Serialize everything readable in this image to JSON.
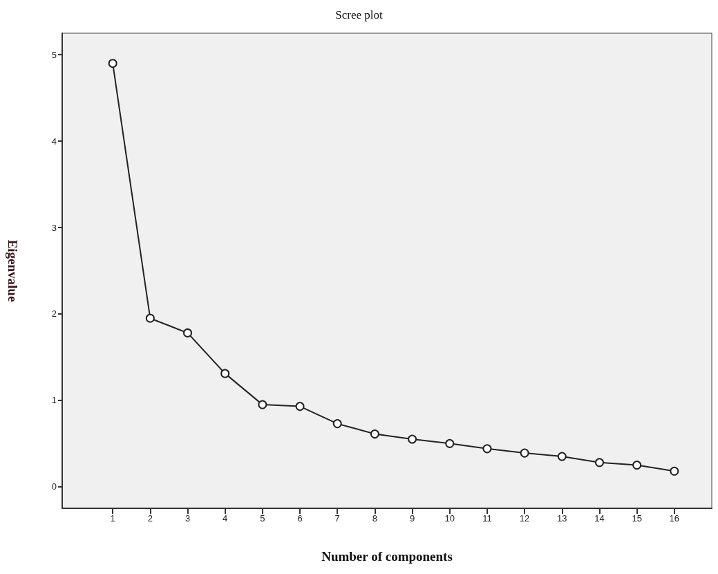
{
  "chart_data": {
    "type": "line",
    "title": "Scree plot",
    "xlabel": "Number of components",
    "ylabel": "Eigenvalue",
    "x": [
      1,
      2,
      3,
      4,
      5,
      6,
      7,
      8,
      9,
      10,
      11,
      12,
      13,
      14,
      15,
      16
    ],
    "values": [
      4.9,
      1.95,
      1.78,
      1.31,
      0.95,
      0.93,
      0.73,
      0.61,
      0.55,
      0.5,
      0.44,
      0.39,
      0.35,
      0.28,
      0.25,
      0.18
    ],
    "color": "#222222",
    "marker": "circle",
    "line_style": "solid",
    "grid": false,
    "xlim": [
      -0.35,
      17
    ],
    "xticks": [
      1,
      2,
      3,
      4,
      5,
      6,
      7,
      8,
      9,
      10,
      11,
      12,
      13,
      14,
      15,
      16
    ],
    "ylim": [
      -0.25,
      5.25
    ],
    "yticks": [
      0,
      1,
      2,
      3,
      4,
      5
    ]
  }
}
